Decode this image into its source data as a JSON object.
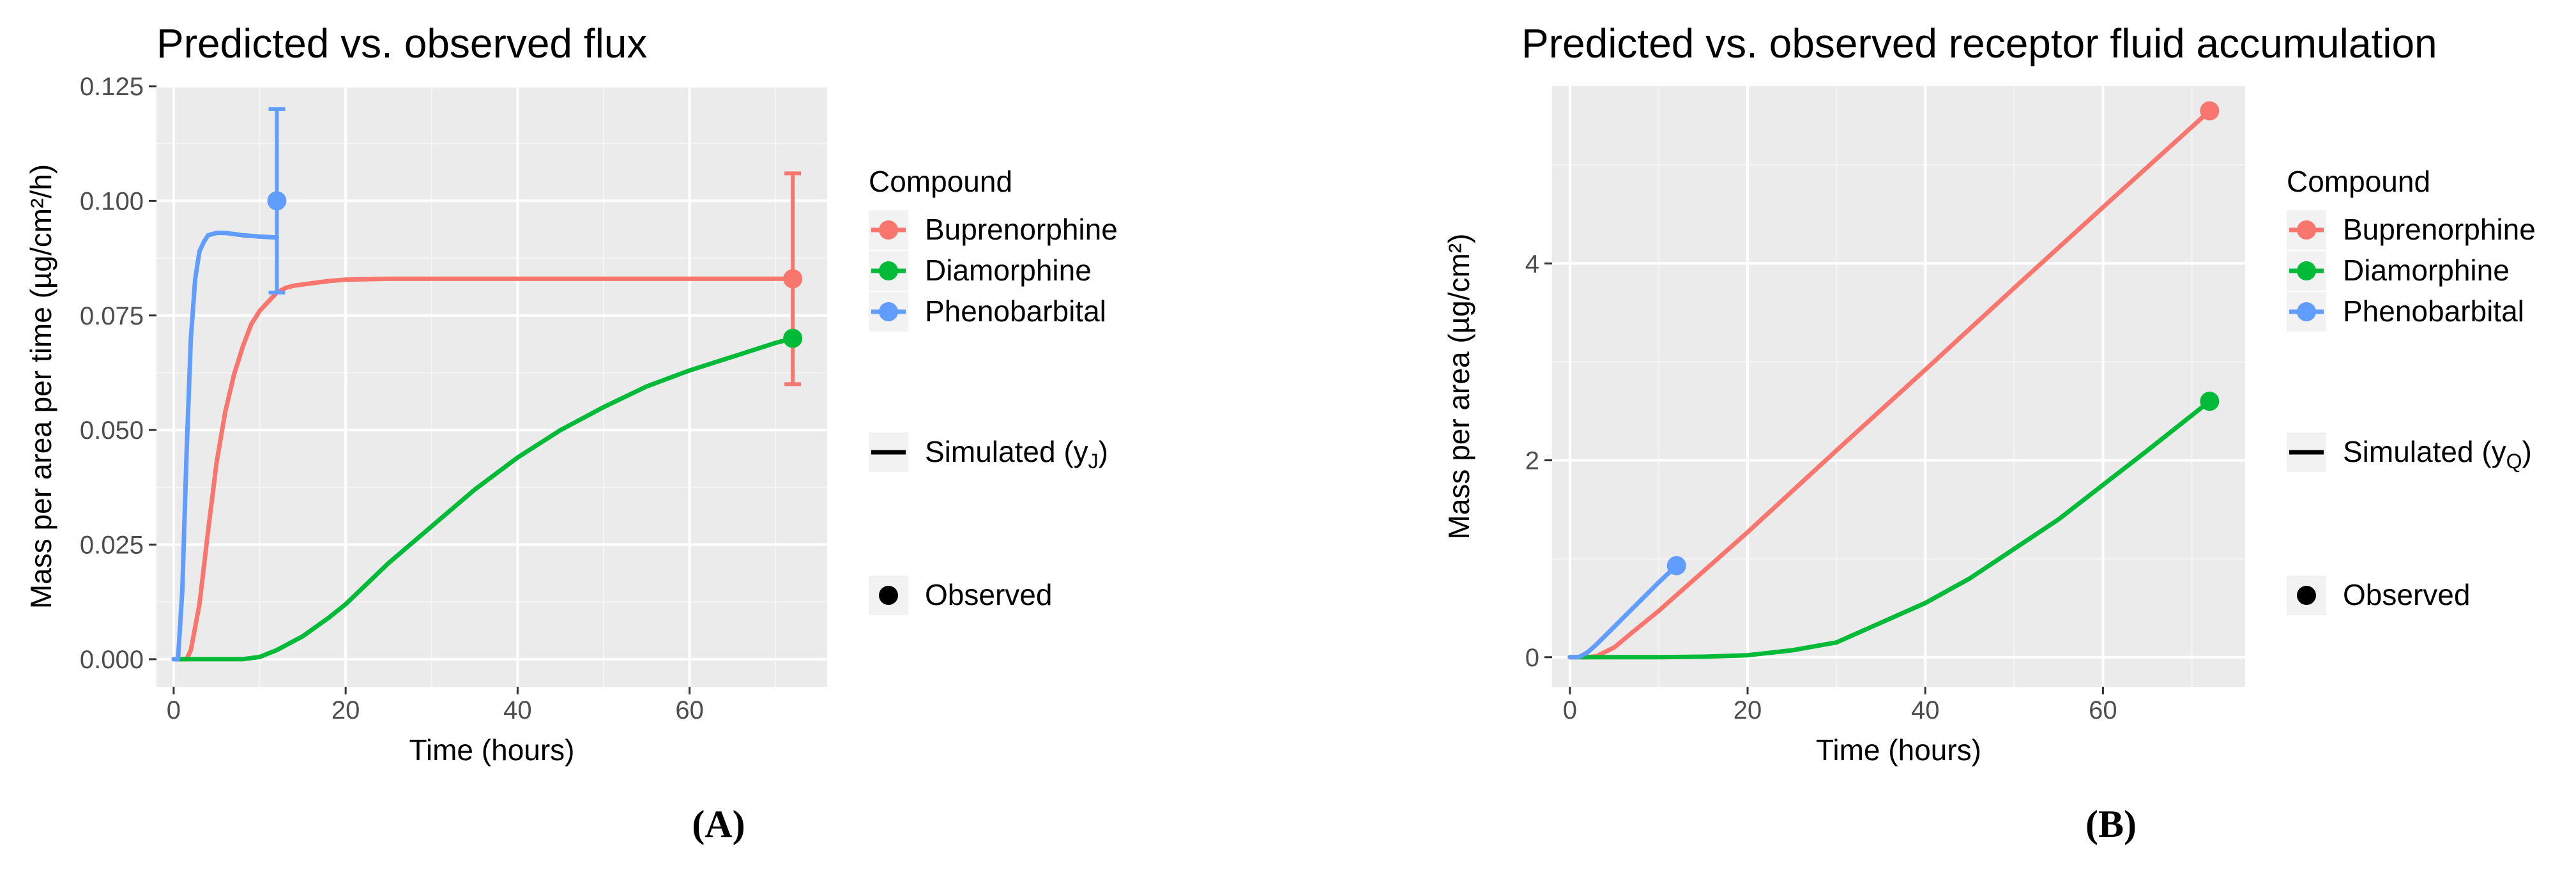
{
  "chart_data": [
    {
      "type": "line",
      "title": "Predicted vs. observed flux",
      "xlabel": "Time (hours)",
      "ylabel": "Mass per area per time (µg/cm²/h)",
      "panel_label": "(A)",
      "xlim": [
        -2,
        76
      ],
      "ylim": [
        -0.006,
        0.125
      ],
      "xticks": [
        0,
        20,
        40,
        60
      ],
      "xtick_labels": [
        "0",
        "20",
        "40",
        "60"
      ],
      "yticks": [
        0,
        0.025,
        0.05,
        0.075,
        0.1,
        0.125
      ],
      "ytick_labels": [
        "0.000",
        "0.025",
        "0.050",
        "0.075",
        "0.100",
        "0.125"
      ],
      "grid": true,
      "legend": {
        "position": "right",
        "title": "Compound",
        "entries": [
          "Buprenorphine",
          "Diamorphine",
          "Phenobarbital"
        ],
        "simulated_label": "Simulated (y",
        "simulated_sub": "J",
        "simulated_close": ")",
        "observed_label": "Observed"
      },
      "series": [
        {
          "name": "Buprenorphine",
          "color": "#F8766D",
          "x": [
            0,
            1.5,
            2,
            3,
            4,
            5,
            6,
            7,
            8,
            9,
            10,
            11,
            12,
            13,
            14,
            16,
            18,
            20,
            25,
            30,
            40,
            50,
            60,
            72
          ],
          "y": [
            0,
            0,
            0.002,
            0.012,
            0.028,
            0.043,
            0.054,
            0.062,
            0.068,
            0.073,
            0.076,
            0.078,
            0.08,
            0.081,
            0.0815,
            0.082,
            0.0825,
            0.0828,
            0.083,
            0.083,
            0.083,
            0.083,
            0.083,
            0.083
          ],
          "observed": {
            "x": 72,
            "y": 0.083,
            "ymin": 0.06,
            "ymax": 0.106
          }
        },
        {
          "name": "Diamorphine",
          "color": "#00BA38",
          "x": [
            0,
            5,
            8,
            10,
            12,
            15,
            18,
            20,
            25,
            30,
            35,
            40,
            45,
            50,
            55,
            60,
            65,
            70,
            72
          ],
          "y": [
            0,
            0,
            0,
            0.0005,
            0.002,
            0.005,
            0.009,
            0.012,
            0.021,
            0.029,
            0.037,
            0.044,
            0.05,
            0.055,
            0.0595,
            0.063,
            0.066,
            0.069,
            0.07
          ],
          "observed": {
            "x": 72,
            "y": 0.07
          }
        },
        {
          "name": "Phenobarbital",
          "color": "#619CFF",
          "x": [
            0,
            0.5,
            1,
            1.5,
            2,
            2.5,
            3,
            3.5,
            4,
            5,
            6,
            8,
            10,
            12
          ],
          "y": [
            0,
            0,
            0.015,
            0.045,
            0.07,
            0.083,
            0.089,
            0.091,
            0.0925,
            0.093,
            0.093,
            0.0925,
            0.0922,
            0.092
          ],
          "observed": {
            "x": 12,
            "y": 0.1,
            "ymin": 0.08,
            "ymax": 0.12
          }
        }
      ]
    },
    {
      "type": "line",
      "title": "Predicted vs. observed receptor fluid accumulation",
      "xlabel": "Time (hours)",
      "ylabel": "Mass per area (µg/cm²)",
      "panel_label": "(B)",
      "xlim": [
        -2,
        76
      ],
      "ylim": [
        -0.3,
        5.8
      ],
      "xticks": [
        0,
        20,
        40,
        60
      ],
      "xtick_labels": [
        "0",
        "20",
        "40",
        "60"
      ],
      "yticks": [
        0,
        2,
        4
      ],
      "ytick_labels": [
        "0",
        "2",
        "4"
      ],
      "grid": true,
      "legend": {
        "position": "right",
        "title": "Compound",
        "entries": [
          "Buprenorphine",
          "Diamorphine",
          "Phenobarbital"
        ],
        "simulated_label": "Simulated (y",
        "simulated_sub": "Q",
        "simulated_close": ")",
        "observed_label": "Observed"
      },
      "series": [
        {
          "name": "Buprenorphine",
          "color": "#F8766D",
          "x": [
            0,
            2,
            3,
            5,
            7,
            10,
            15,
            20,
            30,
            40,
            50,
            60,
            72
          ],
          "y": [
            0,
            0,
            0.01,
            0.1,
            0.25,
            0.47,
            0.87,
            1.27,
            2.1,
            2.92,
            3.75,
            4.57,
            5.55
          ],
          "observed": {
            "x": 72,
            "y": 5.55
          }
        },
        {
          "name": "Diamorphine",
          "color": "#00BA38",
          "x": [
            0,
            10,
            15,
            20,
            25,
            30,
            35,
            40,
            45,
            50,
            55,
            60,
            65,
            72
          ],
          "y": [
            0,
            0,
            0.005,
            0.02,
            0.07,
            0.15,
            0.35,
            0.55,
            0.8,
            1.1,
            1.4,
            1.75,
            2.1,
            2.6
          ],
          "observed": {
            "x": 72,
            "y": 2.6
          }
        },
        {
          "name": "Phenobarbital",
          "color": "#619CFF",
          "x": [
            0,
            1,
            2,
            3,
            4,
            6,
            8,
            10,
            12
          ],
          "y": [
            0,
            0,
            0.05,
            0.13,
            0.22,
            0.4,
            0.58,
            0.76,
            0.93
          ],
          "observed": {
            "x": 12,
            "y": 0.93
          }
        }
      ]
    }
  ]
}
